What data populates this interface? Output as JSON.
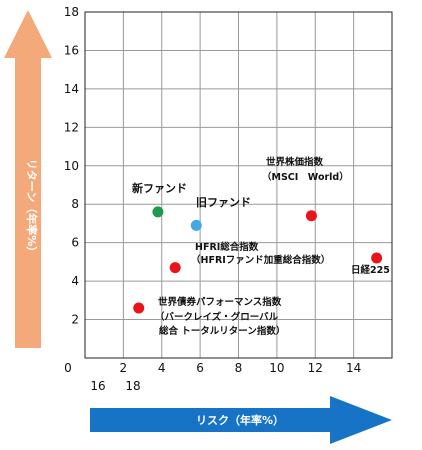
{
  "chart_data": {
    "type": "scatter",
    "xlabel": "リスク（年率%）",
    "ylabel": "リターン（年率%）",
    "xlim": [
      0,
      16
    ],
    "ylim": [
      0,
      18
    ],
    "x_ticks": [
      "2",
      "4",
      "6",
      "8",
      "10",
      "12",
      "14"
    ],
    "y_ticks": [
      "2",
      "4",
      "6",
      "8",
      "10",
      "12",
      "14",
      "16",
      "18"
    ],
    "origin_label": "0",
    "x_ticks_extra": [
      "16",
      "18"
    ],
    "grid": true,
    "points": [
      {
        "label": "新ファンド",
        "x": 3.8,
        "y": 7.6,
        "color": "#1f9a48"
      },
      {
        "label": "旧ファンド",
        "x": 5.8,
        "y": 6.9,
        "color": "#41a9e6"
      },
      {
        "label": "世界株価指数",
        "sublabel": "（MSCI　World）",
        "x": 11.8,
        "y": 7.4,
        "color": "#e8131b"
      },
      {
        "label": "日経225",
        "x": 15.2,
        "y": 5.2,
        "color": "#e8131b"
      },
      {
        "label": "HFRI総合指数",
        "sublabel": "（HFRIファンド加重総合指数）",
        "x": 4.7,
        "y": 4.7,
        "color": "#e8131b"
      },
      {
        "label": "世界債券パフォーマンス指数",
        "sublabel": "（バークレイズ・グローバル",
        "sublabel2": "総合 トータルリターン指数）",
        "x": 2.8,
        "y": 2.6,
        "color": "#e8131b"
      }
    ]
  },
  "arrows": {
    "y_color": "#f4a97a",
    "x_color": "#1673c6"
  }
}
